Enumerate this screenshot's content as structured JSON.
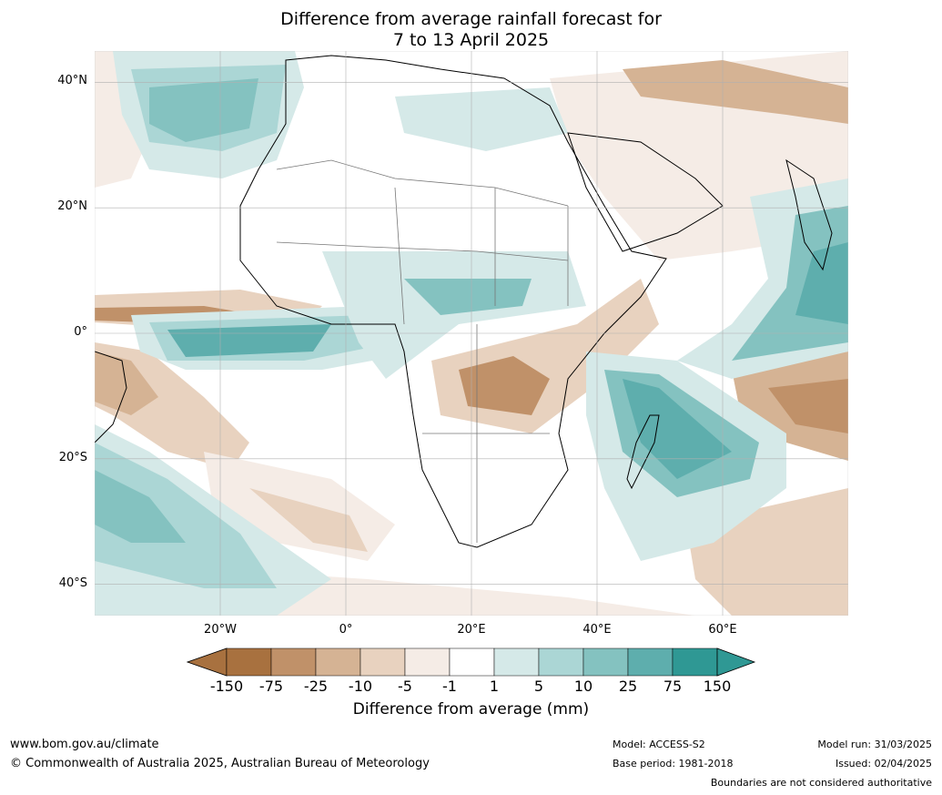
{
  "title": {
    "line1": "Difference from average rainfall forecast for",
    "line2": "7 to 13 April 2025"
  },
  "map": {
    "lat_labels": [
      "40°N",
      "20°N",
      "0°",
      "20°S",
      "40°S"
    ],
    "lat_values": [
      40,
      20,
      0,
      -20,
      -40
    ],
    "lon_labels": [
      "20°W",
      "0°",
      "20°E",
      "40°E",
      "60°E"
    ],
    "lon_values": [
      -20,
      0,
      20,
      40,
      60
    ],
    "extent": {
      "lon_min": -40,
      "lon_max": 80,
      "lat_min": -45,
      "lat_max": 45
    },
    "gridlines": true
  },
  "legend": {
    "tick_labels": [
      "-150",
      "-75",
      "-25",
      "-10",
      "-5",
      "-1",
      "1",
      "5",
      "10",
      "25",
      "75",
      "150"
    ],
    "colors": [
      "#a8713f",
      "#c09169",
      "#d5b394",
      "#e8d2bf",
      "#f5ece6",
      "#ffffff",
      "#d5e9e8",
      "#abd6d5",
      "#84c2c0",
      "#5eaead",
      "#2f9894"
    ],
    "low_extend_color": "#a8713f",
    "high_extend_color": "#2f9894",
    "title": "Difference from average (mm)"
  },
  "footer": {
    "website": "www.bom.gov.au/climate",
    "copyright": "© Commonwealth of Australia 2025, Australian Bureau of Meteorology",
    "model": "Model: ACCESS-S2",
    "base_period": "Base period: 1981-2018",
    "model_run": "Model run: 31/03/2025",
    "issued": "Issued: 02/04/2025",
    "disclaimer": "Boundaries are not considered authoritative"
  }
}
